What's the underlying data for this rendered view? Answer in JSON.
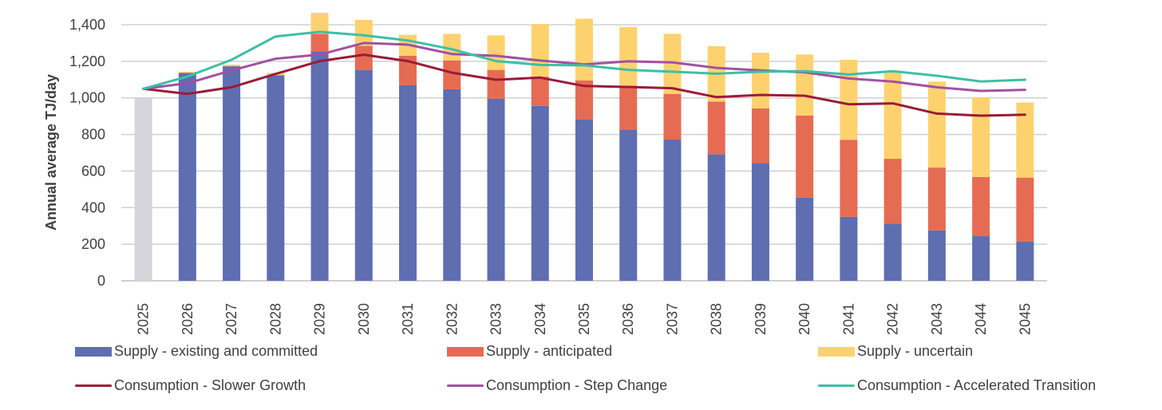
{
  "chart_data": {
    "type": "bar",
    "subtype": "stacked-bar-with-lines",
    "title": "",
    "xlabel": "",
    "ylabel": "Annual average TJ/day",
    "ylim": [
      0,
      1400
    ],
    "yticks": [
      0,
      200,
      400,
      600,
      800,
      1000,
      1200,
      1400
    ],
    "ytick_labels": [
      "0",
      "200",
      "400",
      "600",
      "800",
      "1,000",
      "1,200",
      "1,400"
    ],
    "grid": true,
    "legend_position": "bottom",
    "categories": [
      "2025",
      "2026",
      "2027",
      "2028",
      "2029",
      "2030",
      "2031",
      "2032",
      "2033",
      "2034",
      "2035",
      "2036",
      "2037",
      "2038",
      "2039",
      "2040",
      "2041",
      "2042",
      "2043",
      "2044",
      "2045"
    ],
    "historical_bar": {
      "name": "",
      "color": "#D5D5DB",
      "values": [
        1000,
        null,
        null,
        null,
        null,
        null,
        null,
        null,
        null,
        null,
        null,
        null,
        null,
        null,
        null,
        null,
        null,
        null,
        null,
        null,
        null
      ]
    },
    "bar_series": [
      {
        "name": "Supply - existing and committed",
        "color": "#5F6DB1",
        "values": [
          0,
          1137,
          1173,
          1124,
          1255,
          1153,
          1070,
          1047,
          996,
          956,
          884,
          827,
          772,
          692,
          643,
          455,
          350,
          313,
          276,
          244,
          215
        ]
      },
      {
        "name": "Supply - anticipated",
        "color": "#E66B53",
        "values": [
          0,
          0,
          0,
          0,
          95,
          131,
          160,
          158,
          157,
          160,
          212,
          240,
          250,
          288,
          300,
          449,
          421,
          354,
          343,
          323,
          349
        ]
      },
      {
        "name": "Supply - uncertain",
        "color": "#FDD26E",
        "values": [
          0,
          6,
          9,
          13,
          115,
          142,
          115,
          145,
          189,
          288,
          337,
          320,
          328,
          303,
          304,
          333,
          437,
          476,
          470,
          437,
          411
        ]
      }
    ],
    "line_series": [
      {
        "name": "Consumption - Slower Growth",
        "color": "#9B1B3A",
        "values": [
          1050,
          1022,
          1058,
          1131,
          1201,
          1236,
          1201,
          1138,
          1099,
          1111,
          1065,
          1060,
          1053,
          1004,
          1016,
          1012,
          965,
          970,
          914,
          903,
          908
        ]
      },
      {
        "name": "Consumption - Step Change",
        "color": "#A350A3",
        "values": [
          1050,
          1080,
          1150,
          1214,
          1237,
          1300,
          1291,
          1240,
          1230,
          1204,
          1183,
          1200,
          1194,
          1164,
          1150,
          1140,
          1106,
          1089,
          1058,
          1038,
          1044
        ]
      },
      {
        "name": "Consumption - Accelerated Transition",
        "color": "#3CC0A5",
        "values": [
          1050,
          1117,
          1208,
          1336,
          1361,
          1342,
          1314,
          1266,
          1201,
          1180,
          1178,
          1153,
          1143,
          1132,
          1143,
          1146,
          1128,
          1146,
          1121,
          1090,
          1099
        ]
      }
    ]
  },
  "legend": {
    "items": [
      {
        "label": "Supply - existing and committed",
        "kind": "box",
        "color": "#5F6DB1"
      },
      {
        "label": "Supply - anticipated",
        "kind": "box",
        "color": "#E66B53"
      },
      {
        "label": "Supply - uncertain",
        "kind": "box",
        "color": "#FDD26E"
      },
      {
        "label": "Consumption - Slower Growth",
        "kind": "line",
        "color": "#9B1B3A"
      },
      {
        "label": "Consumption - Step Change",
        "kind": "line",
        "color": "#A350A3"
      },
      {
        "label": "Consumption - Accelerated Transition",
        "kind": "line",
        "color": "#3CC0A5"
      }
    ]
  }
}
